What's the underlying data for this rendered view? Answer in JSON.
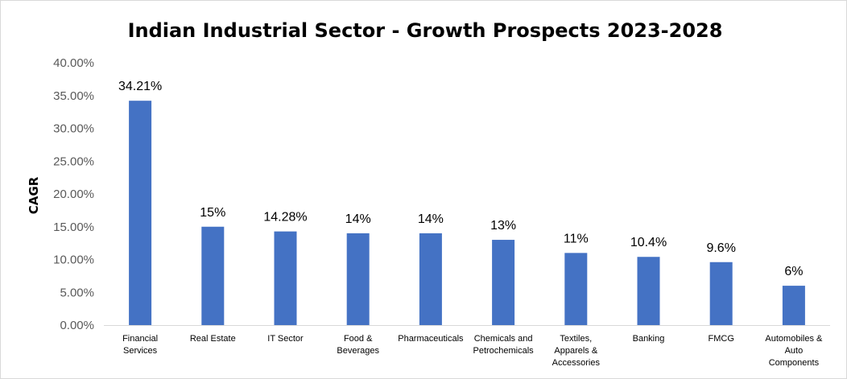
{
  "chart_data": {
    "type": "bar",
    "title": "Indian Industrial Sector - Growth Prospects 2023-2028",
    "xlabel": "",
    "ylabel": "CAGR",
    "ylim": [
      0,
      40
    ],
    "ytick_labels": [
      "0.00%",
      "5.00%",
      "10.00%",
      "15.00%",
      "20.00%",
      "25.00%",
      "30.00%",
      "35.00%",
      "40.00%"
    ],
    "yticks": [
      0,
      5,
      10,
      15,
      20,
      25,
      30,
      35,
      40
    ],
    "grid": false,
    "legend": "none",
    "bar_color": "#4472C4",
    "categories": [
      "Financial Services",
      "Real Estate",
      "IT Sector",
      "Food & Beverages",
      "Pharmaceuticals",
      "Chemicals and Petrochemicals",
      "Textiles, Apparels & Accessories",
      "Banking",
      "FMCG",
      "Automobiles & Auto Components"
    ],
    "category_lines": [
      [
        "Financial",
        "Services"
      ],
      [
        "Real Estate"
      ],
      [
        "IT Sector"
      ],
      [
        "Food &",
        "Beverages"
      ],
      [
        "Pharmaceuticals"
      ],
      [
        "Chemicals and",
        "Petrochemicals"
      ],
      [
        "Textiles,",
        "Apparels &",
        "Accessories"
      ],
      [
        "Banking"
      ],
      [
        "FMCG"
      ],
      [
        "Automobiles &",
        "Auto",
        "Components"
      ]
    ],
    "values": [
      34.21,
      15,
      14.28,
      14,
      14,
      13,
      11,
      10.4,
      9.6,
      6
    ],
    "data_labels": [
      "34.21%",
      "15%",
      "14.28%",
      "14%",
      "14%",
      "13%",
      "11%",
      "10.4%",
      "9.6%",
      "6%"
    ]
  }
}
